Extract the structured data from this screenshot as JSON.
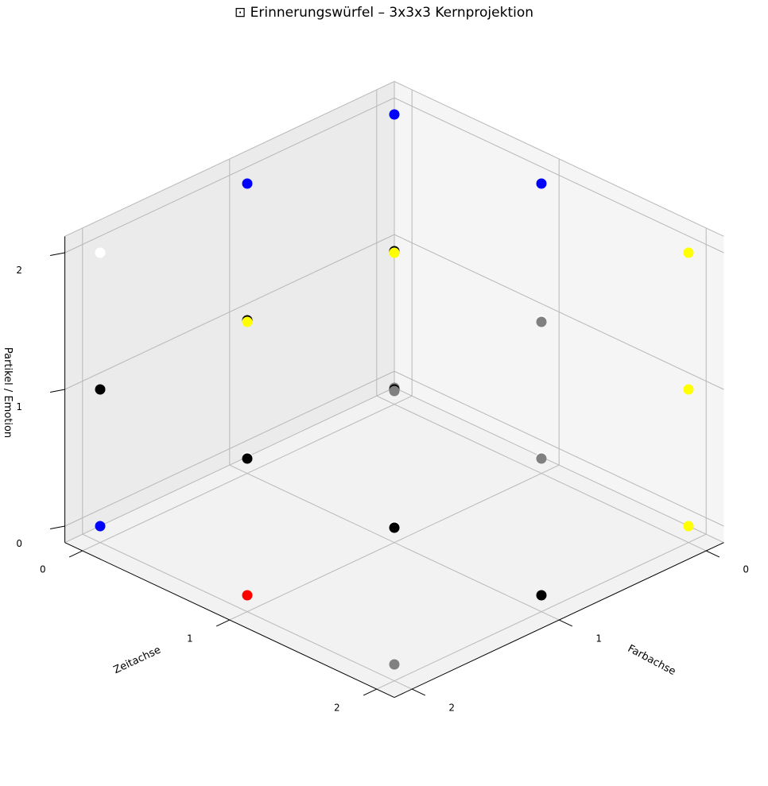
{
  "chart_data": {
    "type": "scatter",
    "title": "⊡ Erinnerungswürfel – 3x3x3 Kernprojektion",
    "xlabel": "Zeitachse",
    "ylabel": "Farbachse",
    "zlabel": "Partikel / Emotion",
    "xlim": [
      0,
      2
    ],
    "ylim": [
      0,
      2
    ],
    "zlim": [
      0,
      2
    ],
    "x_ticks": [
      "0",
      "1",
      "2"
    ],
    "y_ticks": [
      "0",
      "1",
      "2"
    ],
    "z_ticks": [
      "0",
      "1",
      "2"
    ],
    "grid": true,
    "points": [
      {
        "x": 0,
        "y": 0,
        "z": 0,
        "color": "#808080"
      },
      {
        "x": 0,
        "y": 0,
        "z": 1,
        "color": "#000000"
      },
      {
        "x": 0,
        "y": 0,
        "z": 2,
        "color": "#0000ff"
      },
      {
        "x": 0,
        "y": 1,
        "z": 0,
        "color": "#ffffff"
      },
      {
        "x": 0,
        "y": 1,
        "z": 1,
        "color": "#000000"
      },
      {
        "x": 0,
        "y": 1,
        "z": 2,
        "color": "#0000ff"
      },
      {
        "x": 0,
        "y": 2,
        "z": 0,
        "color": "#0000ff"
      },
      {
        "x": 0,
        "y": 2,
        "z": 1,
        "color": "#000000"
      },
      {
        "x": 0,
        "y": 2,
        "z": 2,
        "color": "#ffffff"
      },
      {
        "x": 1,
        "y": 0,
        "z": 0,
        "color": "#ffffff"
      },
      {
        "x": 1,
        "y": 0,
        "z": 1,
        "color": "#ffffff"
      },
      {
        "x": 1,
        "y": 0,
        "z": 2,
        "color": "#0000ff"
      },
      {
        "x": 1,
        "y": 1,
        "z": 0,
        "color": "#ffffff"
      },
      {
        "x": 1,
        "y": 1,
        "z": 1,
        "color": "#000000"
      },
      {
        "x": 1,
        "y": 1,
        "z": 2,
        "color": "#ffff00"
      },
      {
        "x": 1,
        "y": 2,
        "z": 0,
        "color": "#ff0000"
      },
      {
        "x": 1,
        "y": 2,
        "z": 1,
        "color": "#000000"
      },
      {
        "x": 1,
        "y": 2,
        "z": 2,
        "color": "#ffff00"
      },
      {
        "x": 2,
        "y": 0,
        "z": 0,
        "color": "#ffff00"
      },
      {
        "x": 2,
        "y": 0,
        "z": 1,
        "color": "#ffff00"
      },
      {
        "x": 2,
        "y": 0,
        "z": 2,
        "color": "#ffff00"
      },
      {
        "x": 2,
        "y": 1,
        "z": 0,
        "color": "#000000"
      },
      {
        "x": 2,
        "y": 1,
        "z": 1,
        "color": "#808080"
      },
      {
        "x": 2,
        "y": 1,
        "z": 2,
        "color": "#808080"
      },
      {
        "x": 2,
        "y": 2,
        "z": 0,
        "color": "#808080"
      },
      {
        "x": 2,
        "y": 2,
        "z": 1,
        "color": "#000000"
      },
      {
        "x": 2,
        "y": 2,
        "z": 2,
        "color": "#808080"
      }
    ]
  }
}
